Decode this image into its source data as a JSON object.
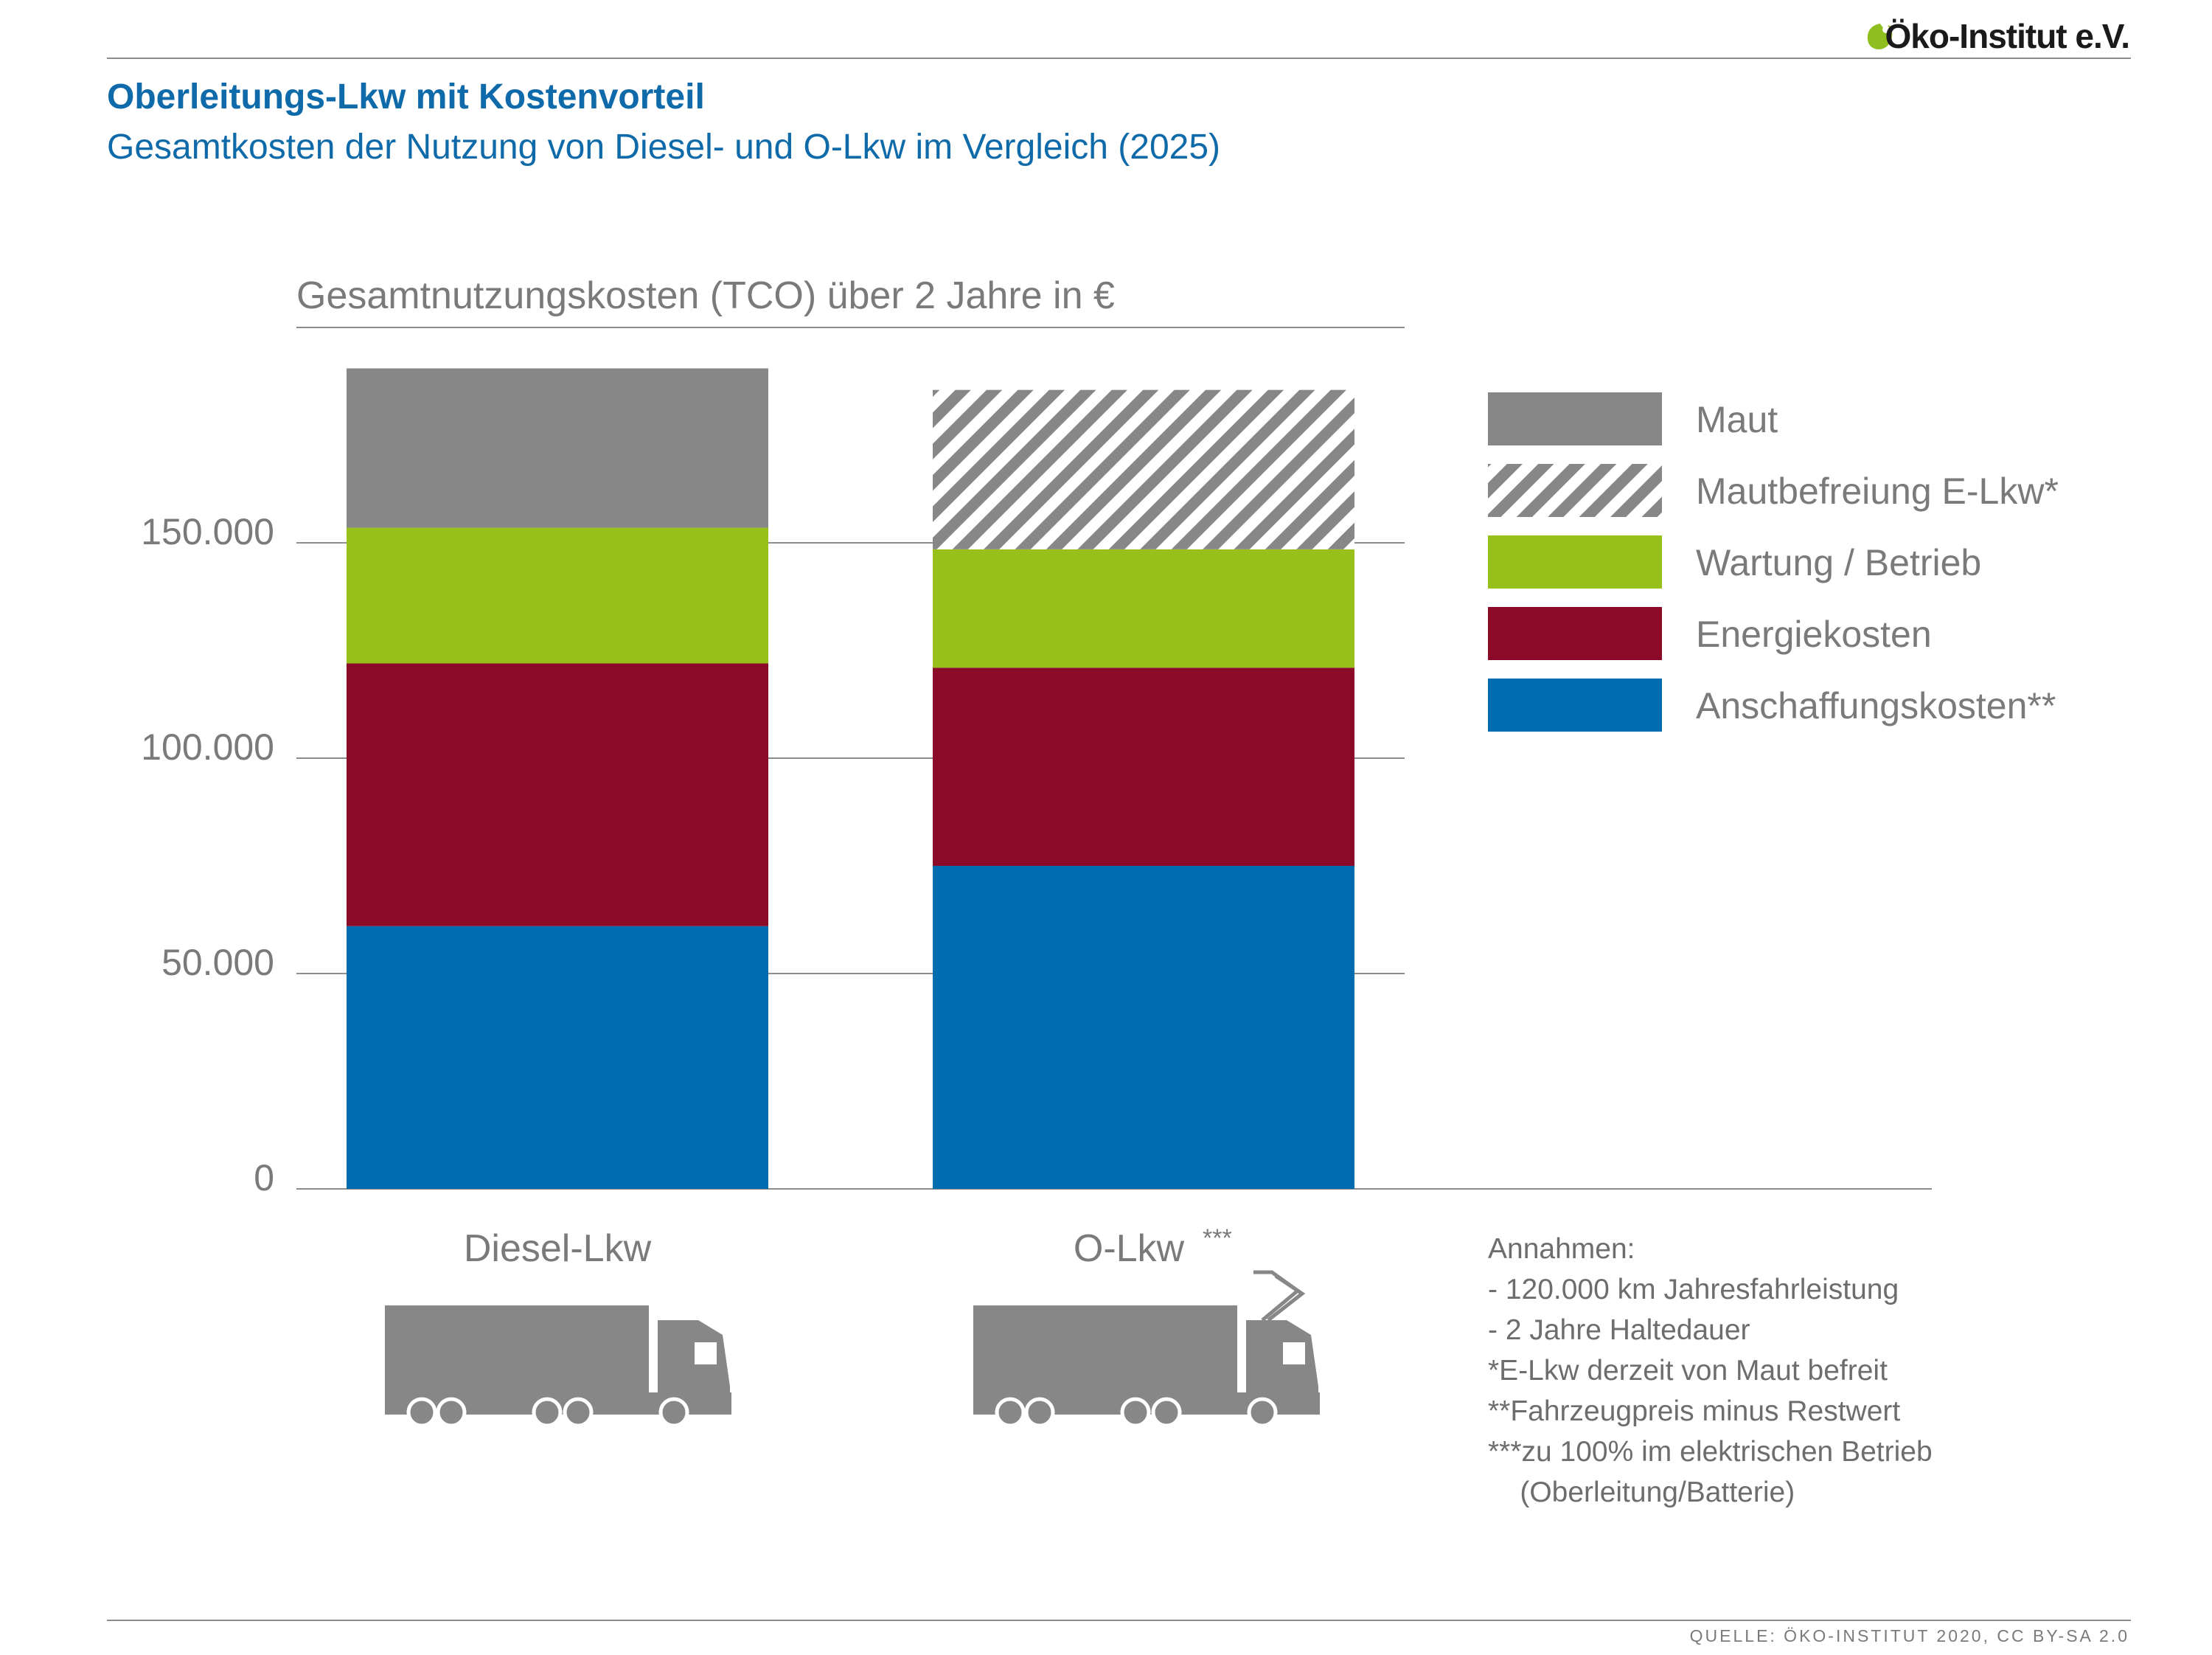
{
  "header": {
    "logo_text": "Öko-Institut e.V.",
    "title": "Oberleitungs-Lkw mit Kostenvorteil",
    "subtitle": "Gesamtkosten der Nutzung von Diesel- und O-Lkw im Vergleich (2025)",
    "accent_color": "#0f6aaa",
    "logo_leaf_color": "#8fbe1f"
  },
  "chart_data": {
    "type": "bar",
    "stacked": true,
    "title": "Gesamtnutzungskosten (TCO) über 2 Jahre in €",
    "categories": [
      "Diesel-Lkw",
      "O-Lkw"
    ],
    "category_suffixes": [
      "",
      "***"
    ],
    "y_ticks": [
      "0",
      "50.000",
      "100.000",
      "150.000"
    ],
    "y_tick_values": [
      0,
      50000,
      100000,
      150000
    ],
    "ylim": [
      0,
      190000
    ],
    "grid": true,
    "legend_position": "right",
    "series": [
      {
        "name": "Anschaffungskosten**",
        "color": "#006cb0",
        "pattern": "solid",
        "values": [
          61000,
          75000
        ]
      },
      {
        "name": "Energiekosten",
        "color": "#8a0a28",
        "pattern": "solid",
        "values": [
          61000,
          46000
        ]
      },
      {
        "name": "Wartung / Betrieb",
        "color": "#97c11a",
        "pattern": "solid",
        "values": [
          31500,
          27500
        ]
      },
      {
        "name": "Maut",
        "color": "#878787",
        "pattern": "solid",
        "values": [
          37000,
          0
        ]
      },
      {
        "name": "Mautbefreiung E-Lkw*",
        "color": "#878787",
        "pattern": "hatched",
        "values": [
          0,
          37000
        ]
      }
    ],
    "legend_order": [
      "Maut",
      "Mautbefreiung E-Lkw*",
      "Wartung / Betrieb",
      "Energiekosten",
      "Anschaffungskosten**"
    ],
    "icons": [
      "truck-icon",
      "overhead-truck-icon"
    ],
    "icon_color": "#878787"
  },
  "notes": {
    "heading": "Annahmen:",
    "lines": [
      "- 120.000 km Jahresfahrleistung",
      "- 2 Jahre Haltedauer",
      "",
      "*E-Lkw derzeit von Maut befreit",
      "**Fahrzeugpreis minus Restwert",
      "***zu 100% im elektrischen Betrieb",
      "    (Oberleitung/Batterie)"
    ]
  },
  "footer": {
    "source": "QUELLE: ÖKO-INSTITUT 2020, CC BY-SA 2.0"
  }
}
